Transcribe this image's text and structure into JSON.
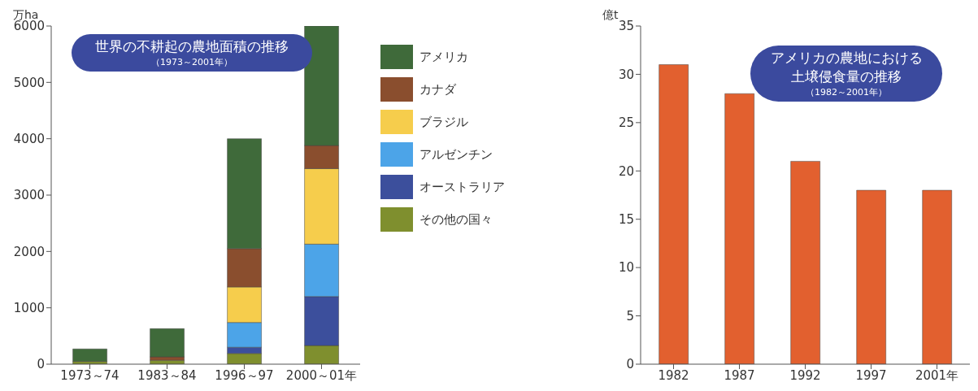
{
  "chart_data": [
    {
      "type": "bar",
      "title": "世界の不耕起の農地面積の推移",
      "subtitle": "（1973～2001年）",
      "ylabel": "万ha",
      "stacked": true,
      "legend": "right",
      "grid": false,
      "categories": [
        "1973～74",
        "1983～84",
        "1996～97",
        "2000～01年"
      ],
      "series": [
        {
          "name": "その他の国々",
          "color": "#7f8f2e",
          "values": [
            50,
            70,
            190,
            330
          ]
        },
        {
          "name": "オーストラリア",
          "color": "#3c4f9c",
          "values": [
            null,
            null,
            110,
            870
          ]
        },
        {
          "name": "アルゼンチン",
          "color": "#4ca4e8",
          "values": [
            null,
            null,
            440,
            930
          ]
        },
        {
          "name": "ブラジル",
          "color": "#f6cd4c",
          "values": [
            null,
            null,
            630,
            1340
          ]
        },
        {
          "name": "カナダ",
          "color": "#8a4e2e",
          "values": [
            null,
            60,
            680,
            410
          ]
        },
        {
          "name": "アメリカ",
          "color": "#3f6a3a",
          "values": [
            220,
            500,
            1950,
            2120
          ]
        }
      ],
      "ylim": [
        0,
        6000
      ],
      "yticks": [
        0,
        1000,
        2000,
        3000,
        4000,
        5000,
        6000
      ]
    },
    {
      "type": "bar",
      "title": "アメリカの農地における土壌侵食量の推移",
      "subtitle": "（1982～2001年）",
      "ylabel": "億t",
      "legend": false,
      "grid": false,
      "categories": [
        "1982",
        "1987",
        "1992",
        "1997",
        "2001年"
      ],
      "values": [
        31,
        28,
        21,
        18,
        18
      ],
      "color": "#e2602f",
      "ylim": [
        0,
        35
      ],
      "yticks": [
        0,
        5,
        10,
        15,
        20,
        25,
        30,
        35
      ]
    }
  ]
}
